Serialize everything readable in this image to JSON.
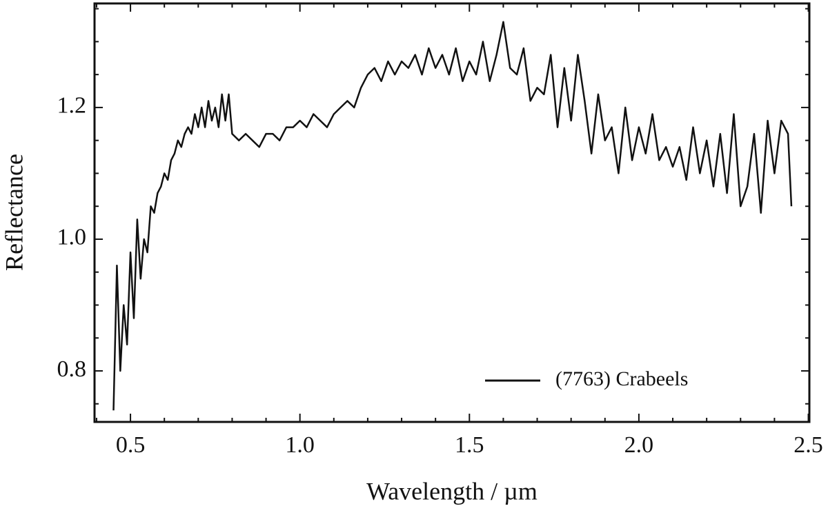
{
  "chart_data": {
    "type": "line",
    "xlabel": "Wavelength / µm",
    "ylabel": "Reflectance",
    "x": [
      0.45,
      0.46,
      0.47,
      0.48,
      0.49,
      0.5,
      0.51,
      0.52,
      0.53,
      0.54,
      0.55,
      0.56,
      0.57,
      0.58,
      0.59,
      0.6,
      0.61,
      0.62,
      0.63,
      0.64,
      0.65,
      0.66,
      0.67,
      0.68,
      0.69,
      0.7,
      0.71,
      0.72,
      0.73,
      0.74,
      0.75,
      0.76,
      0.77,
      0.78,
      0.79,
      0.8,
      0.82,
      0.84,
      0.86,
      0.88,
      0.9,
      0.92,
      0.94,
      0.96,
      0.98,
      1.0,
      1.02,
      1.04,
      1.06,
      1.08,
      1.1,
      1.12,
      1.14,
      1.16,
      1.18,
      1.2,
      1.22,
      1.24,
      1.26,
      1.28,
      1.3,
      1.32,
      1.34,
      1.36,
      1.38,
      1.4,
      1.42,
      1.44,
      1.46,
      1.48,
      1.5,
      1.52,
      1.54,
      1.56,
      1.58,
      1.6,
      1.62,
      1.64,
      1.66,
      1.68,
      1.7,
      1.72,
      1.74,
      1.76,
      1.78,
      1.8,
      1.82,
      1.84,
      1.86,
      1.88,
      1.9,
      1.92,
      1.94,
      1.96,
      1.98,
      2.0,
      2.02,
      2.04,
      2.06,
      2.08,
      2.1,
      2.12,
      2.14,
      2.16,
      2.18,
      2.2,
      2.22,
      2.24,
      2.26,
      2.28,
      2.3,
      2.32,
      2.34,
      2.36,
      2.38,
      2.4,
      2.42,
      2.44,
      2.45
    ],
    "series": [
      {
        "name": "(7763) Crabeels",
        "color": "#111111",
        "values": [
          0.74,
          0.96,
          0.8,
          0.9,
          0.84,
          0.98,
          0.88,
          1.03,
          0.94,
          1.0,
          0.98,
          1.05,
          1.04,
          1.07,
          1.08,
          1.1,
          1.09,
          1.12,
          1.13,
          1.15,
          1.14,
          1.16,
          1.17,
          1.16,
          1.19,
          1.17,
          1.2,
          1.17,
          1.21,
          1.18,
          1.2,
          1.17,
          1.22,
          1.18,
          1.22,
          1.16,
          1.15,
          1.16,
          1.15,
          1.14,
          1.16,
          1.16,
          1.15,
          1.17,
          1.17,
          1.18,
          1.17,
          1.19,
          1.18,
          1.17,
          1.19,
          1.2,
          1.21,
          1.2,
          1.23,
          1.25,
          1.26,
          1.24,
          1.27,
          1.25,
          1.27,
          1.26,
          1.28,
          1.25,
          1.29,
          1.26,
          1.28,
          1.25,
          1.29,
          1.24,
          1.27,
          1.25,
          1.3,
          1.24,
          1.28,
          1.33,
          1.26,
          1.25,
          1.29,
          1.21,
          1.23,
          1.22,
          1.28,
          1.17,
          1.26,
          1.18,
          1.28,
          1.21,
          1.13,
          1.22,
          1.15,
          1.17,
          1.1,
          1.2,
          1.12,
          1.17,
          1.13,
          1.19,
          1.12,
          1.14,
          1.11,
          1.14,
          1.09,
          1.17,
          1.1,
          1.15,
          1.08,
          1.16,
          1.07,
          1.19,
          1.05,
          1.08,
          1.16,
          1.04,
          1.18,
          1.1,
          1.18,
          1.16,
          1.05
        ]
      }
    ],
    "xlim": [
      0.394,
      2.503
    ],
    "ylim": [
      0.7225,
      1.358
    ],
    "xticks": [
      0.5,
      {
        "value": 1,
        "label": "1.0"
      },
      1.5,
      {
        "value": 2,
        "label": "2.0"
      },
      2.5
    ],
    "yticks": [
      0.8,
      {
        "value": 1,
        "label": "1.0"
      },
      1.2
    ],
    "xminorticks": [
      0.4,
      0.6,
      0.7,
      0.8,
      0.9,
      1.1,
      1.2,
      1.3,
      1.4,
      1.6,
      1.7,
      1.8,
      1.9,
      2.1,
      2.2,
      2.3,
      2.4
    ],
    "yminorticks": [
      0.75,
      0.85,
      0.9,
      0.95,
      1.05,
      1.1,
      1.15,
      1.25,
      1.3,
      1.35
    ],
    "grid": false,
    "legend": "lower right"
  }
}
